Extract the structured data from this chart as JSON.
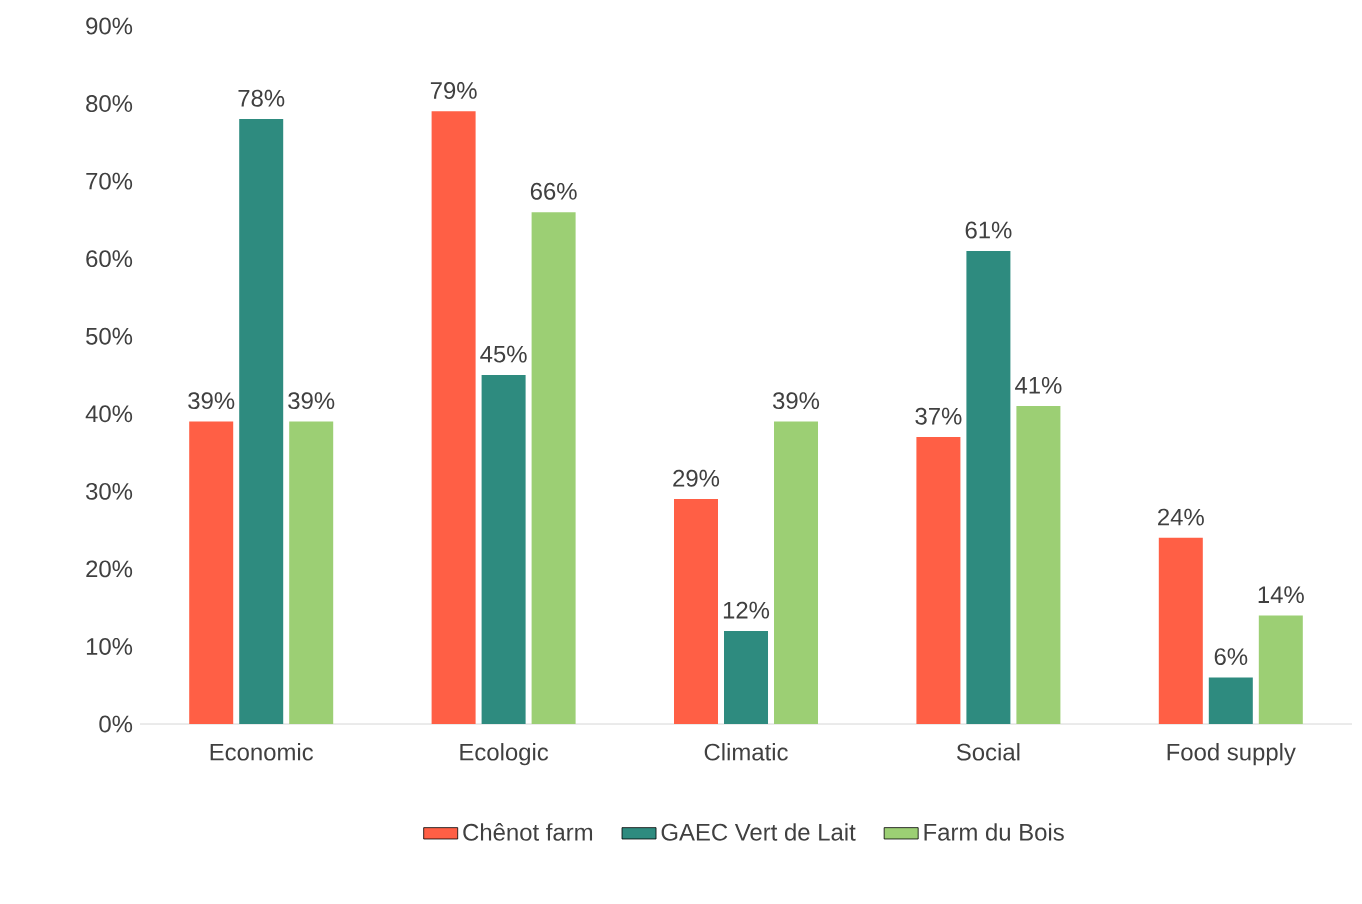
{
  "chart_data": {
    "type": "bar",
    "categories": [
      "Economic",
      "Ecologic",
      "Climatic",
      "Social",
      "Food supply"
    ],
    "series": [
      {
        "name": "Chênot farm",
        "color": "#ff5f45",
        "values": [
          39,
          79,
          29,
          37,
          24
        ],
        "value_labels": [
          "39%",
          "79%",
          "29%",
          "37%",
          "24%"
        ]
      },
      {
        "name": "GAEC Vert de Lait",
        "color": "#2e8b7f",
        "values": [
          78,
          45,
          12,
          61,
          6
        ],
        "value_labels": [
          "78%",
          "45%",
          "12%",
          "61%",
          "6%"
        ]
      },
      {
        "name": "Farm du Bois",
        "color": "#9ccf74",
        "values": [
          39,
          66,
          39,
          41,
          14
        ],
        "value_labels": [
          "39%",
          "66%",
          "39%",
          "41%",
          "14%"
        ]
      }
    ],
    "ylim": [
      0,
      90
    ],
    "yticks": [
      {
        "value": 0,
        "label": "0%"
      },
      {
        "value": 10,
        "label": "10%"
      },
      {
        "value": 20,
        "label": "20%"
      },
      {
        "value": 30,
        "label": "30%"
      },
      {
        "value": 40,
        "label": "40%"
      },
      {
        "value": 50,
        "label": "50%"
      },
      {
        "value": 60,
        "label": "60%"
      },
      {
        "value": 70,
        "label": "70%"
      },
      {
        "value": 80,
        "label": "80%"
      },
      {
        "value": 90,
        "label": "90%"
      }
    ],
    "legend": "bottom"
  }
}
